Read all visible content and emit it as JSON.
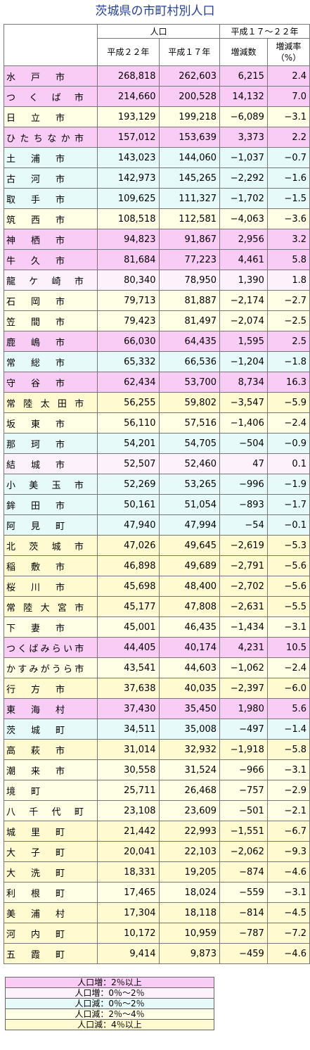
{
  "title": "茨城県の市町村別人口",
  "header": {
    "group_population": "人口",
    "group_change": "平成１７～２２年",
    "col_h22": "平成２２年",
    "col_h17": "平成１７年",
    "col_diff": "増減数",
    "col_rate_line1": "増減率",
    "col_rate_line2": "（%）"
  },
  "colors": {
    "cat-a": "#f8ccf4",
    "cat-b": "#fdf1fb",
    "cat-c": "#e6fafa",
    "cat-d": "#ffffe5",
    "cat-e": "#fffad0"
  },
  "rows": [
    {
      "name": "水戸市",
      "h22": "268,818",
      "h17": "262,603",
      "diff": "6,215",
      "rate": "2.4",
      "cat": "cat-a"
    },
    {
      "name": "つくば市",
      "h22": "214,660",
      "h17": "200,528",
      "diff": "14,132",
      "rate": "7.0",
      "cat": "cat-a"
    },
    {
      "name": "日立市",
      "h22": "193,129",
      "h17": "199,218",
      "diff": "−6,089",
      "rate": "−3.1",
      "cat": "cat-d"
    },
    {
      "name": "ひたちなか市",
      "h22": "157,012",
      "h17": "153,639",
      "diff": "3,373",
      "rate": "2.2",
      "cat": "cat-a"
    },
    {
      "name": "土浦市",
      "h22": "143,023",
      "h17": "144,060",
      "diff": "−1,037",
      "rate": "−0.7",
      "cat": "cat-c"
    },
    {
      "name": "古河市",
      "h22": "142,973",
      "h17": "145,265",
      "diff": "−2,292",
      "rate": "−1.6",
      "cat": "cat-c"
    },
    {
      "name": "取手市",
      "h22": "109,625",
      "h17": "111,327",
      "diff": "−1,702",
      "rate": "−1.5",
      "cat": "cat-c"
    },
    {
      "name": "筑西市",
      "h22": "108,518",
      "h17": "112,581",
      "diff": "−4,063",
      "rate": "−3.6",
      "cat": "cat-d"
    },
    {
      "name": "神栖市",
      "h22": "94,823",
      "h17": "91,867",
      "diff": "2,956",
      "rate": "3.2",
      "cat": "cat-a"
    },
    {
      "name": "牛久市",
      "h22": "81,684",
      "h17": "77,223",
      "diff": "4,461",
      "rate": "5.8",
      "cat": "cat-a"
    },
    {
      "name": "龍ケ崎市",
      "h22": "80,340",
      "h17": "78,950",
      "diff": "1,390",
      "rate": "1.8",
      "cat": "cat-b"
    },
    {
      "name": "石岡市",
      "h22": "79,713",
      "h17": "81,887",
      "diff": "−2,174",
      "rate": "−2.7",
      "cat": "cat-d"
    },
    {
      "name": "笠間市",
      "h22": "79,423",
      "h17": "81,497",
      "diff": "−2,074",
      "rate": "−2.5",
      "cat": "cat-d"
    },
    {
      "name": "鹿嶋市",
      "h22": "66,030",
      "h17": "64,435",
      "diff": "1,595",
      "rate": "2.5",
      "cat": "cat-a"
    },
    {
      "name": "常総市",
      "h22": "65,332",
      "h17": "66,536",
      "diff": "−1,204",
      "rate": "−1.8",
      "cat": "cat-c"
    },
    {
      "name": "守谷市",
      "h22": "62,434",
      "h17": "53,700",
      "diff": "8,734",
      "rate": "16.3",
      "cat": "cat-a"
    },
    {
      "name": "常陸太田市",
      "h22": "56,255",
      "h17": "59,802",
      "diff": "−3,547",
      "rate": "−5.9",
      "cat": "cat-e"
    },
    {
      "name": "坂東市",
      "h22": "56,110",
      "h17": "57,516",
      "diff": "−1,406",
      "rate": "−2.4",
      "cat": "cat-d"
    },
    {
      "name": "那珂市",
      "h22": "54,201",
      "h17": "54,705",
      "diff": "−504",
      "rate": "−0.9",
      "cat": "cat-c"
    },
    {
      "name": "結城市",
      "h22": "52,507",
      "h17": "52,460",
      "diff": "47",
      "rate": "0.1",
      "cat": "cat-b"
    },
    {
      "name": "小美玉市",
      "h22": "52,269",
      "h17": "53,265",
      "diff": "−996",
      "rate": "−1.9",
      "cat": "cat-c"
    },
    {
      "name": "鉾田市",
      "h22": "50,161",
      "h17": "51,054",
      "diff": "−893",
      "rate": "−1.7",
      "cat": "cat-c"
    },
    {
      "name": "阿見町",
      "h22": "47,940",
      "h17": "47,994",
      "diff": "−54",
      "rate": "−0.1",
      "cat": "cat-c"
    },
    {
      "name": "北茨城市",
      "h22": "47,026",
      "h17": "49,645",
      "diff": "−2,619",
      "rate": "−5.3",
      "cat": "cat-e"
    },
    {
      "name": "稲敷市",
      "h22": "46,898",
      "h17": "49,689",
      "diff": "−2,791",
      "rate": "−5.6",
      "cat": "cat-e"
    },
    {
      "name": "桜川市",
      "h22": "45,698",
      "h17": "48,400",
      "diff": "−2,702",
      "rate": "−5.6",
      "cat": "cat-e"
    },
    {
      "name": "常陸大宮市",
      "h22": "45,177",
      "h17": "47,808",
      "diff": "−2,631",
      "rate": "−5.5",
      "cat": "cat-e"
    },
    {
      "name": "下妻市",
      "h22": "45,001",
      "h17": "46,435",
      "diff": "−1,434",
      "rate": "−3.1",
      "cat": "cat-d"
    },
    {
      "name": "つくばみらい市",
      "h22": "44,405",
      "h17": "40,174",
      "diff": "4,231",
      "rate": "10.5",
      "cat": "cat-a"
    },
    {
      "name": "かすみがうら市",
      "h22": "43,541",
      "h17": "44,603",
      "diff": "−1,062",
      "rate": "−2.4",
      "cat": "cat-d"
    },
    {
      "name": "行方市",
      "h22": "37,638",
      "h17": "40,035",
      "diff": "−2,397",
      "rate": "−6.0",
      "cat": "cat-e"
    },
    {
      "name": "東海村",
      "h22": "37,430",
      "h17": "35,450",
      "diff": "1,980",
      "rate": "5.6",
      "cat": "cat-a"
    },
    {
      "name": "茨城町",
      "h22": "34,511",
      "h17": "35,008",
      "diff": "−497",
      "rate": "−1.4",
      "cat": "cat-c"
    },
    {
      "name": "高萩市",
      "h22": "31,014",
      "h17": "32,932",
      "diff": "−1,918",
      "rate": "−5.8",
      "cat": "cat-e"
    },
    {
      "name": "潮来市",
      "h22": "30,558",
      "h17": "31,524",
      "diff": "−966",
      "rate": "−3.1",
      "cat": "cat-d"
    },
    {
      "name": "境町",
      "h22": "25,711",
      "h17": "26,468",
      "diff": "−757",
      "rate": "−2.9",
      "cat": "cat-d"
    },
    {
      "name": "八千代町",
      "h22": "23,108",
      "h17": "23,609",
      "diff": "−501",
      "rate": "−2.1",
      "cat": "cat-d"
    },
    {
      "name": "城里町",
      "h22": "21,442",
      "h17": "22,993",
      "diff": "−1,551",
      "rate": "−6.7",
      "cat": "cat-e"
    },
    {
      "name": "大子町",
      "h22": "20,041",
      "h17": "22,103",
      "diff": "−2,062",
      "rate": "−9.3",
      "cat": "cat-e"
    },
    {
      "name": "大洗町",
      "h22": "18,331",
      "h17": "19,205",
      "diff": "−874",
      "rate": "−4.6",
      "cat": "cat-e"
    },
    {
      "name": "利根町",
      "h22": "17,465",
      "h17": "18,024",
      "diff": "−559",
      "rate": "−3.1",
      "cat": "cat-d"
    },
    {
      "name": "美浦村",
      "h22": "17,304",
      "h17": "18,118",
      "diff": "−814",
      "rate": "−4.5",
      "cat": "cat-e"
    },
    {
      "name": "河内町",
      "h22": "10,172",
      "h17": "10,959",
      "diff": "−787",
      "rate": "−7.2",
      "cat": "cat-e"
    },
    {
      "name": "五霞町",
      "h22": "9,414",
      "h17": "9,873",
      "diff": "−459",
      "rate": "−4.6",
      "cat": "cat-e"
    }
  ],
  "legend": [
    {
      "label": "人口増：2％以上",
      "cat": "cat-a"
    },
    {
      "label": "人口増：0％～2％",
      "cat": "cat-b"
    },
    {
      "label": "人口減：0％～2％",
      "cat": "cat-c"
    },
    {
      "label": "人口減：2％～4％",
      "cat": "cat-d"
    },
    {
      "label": "人口減：4％以上",
      "cat": "cat-e"
    }
  ]
}
